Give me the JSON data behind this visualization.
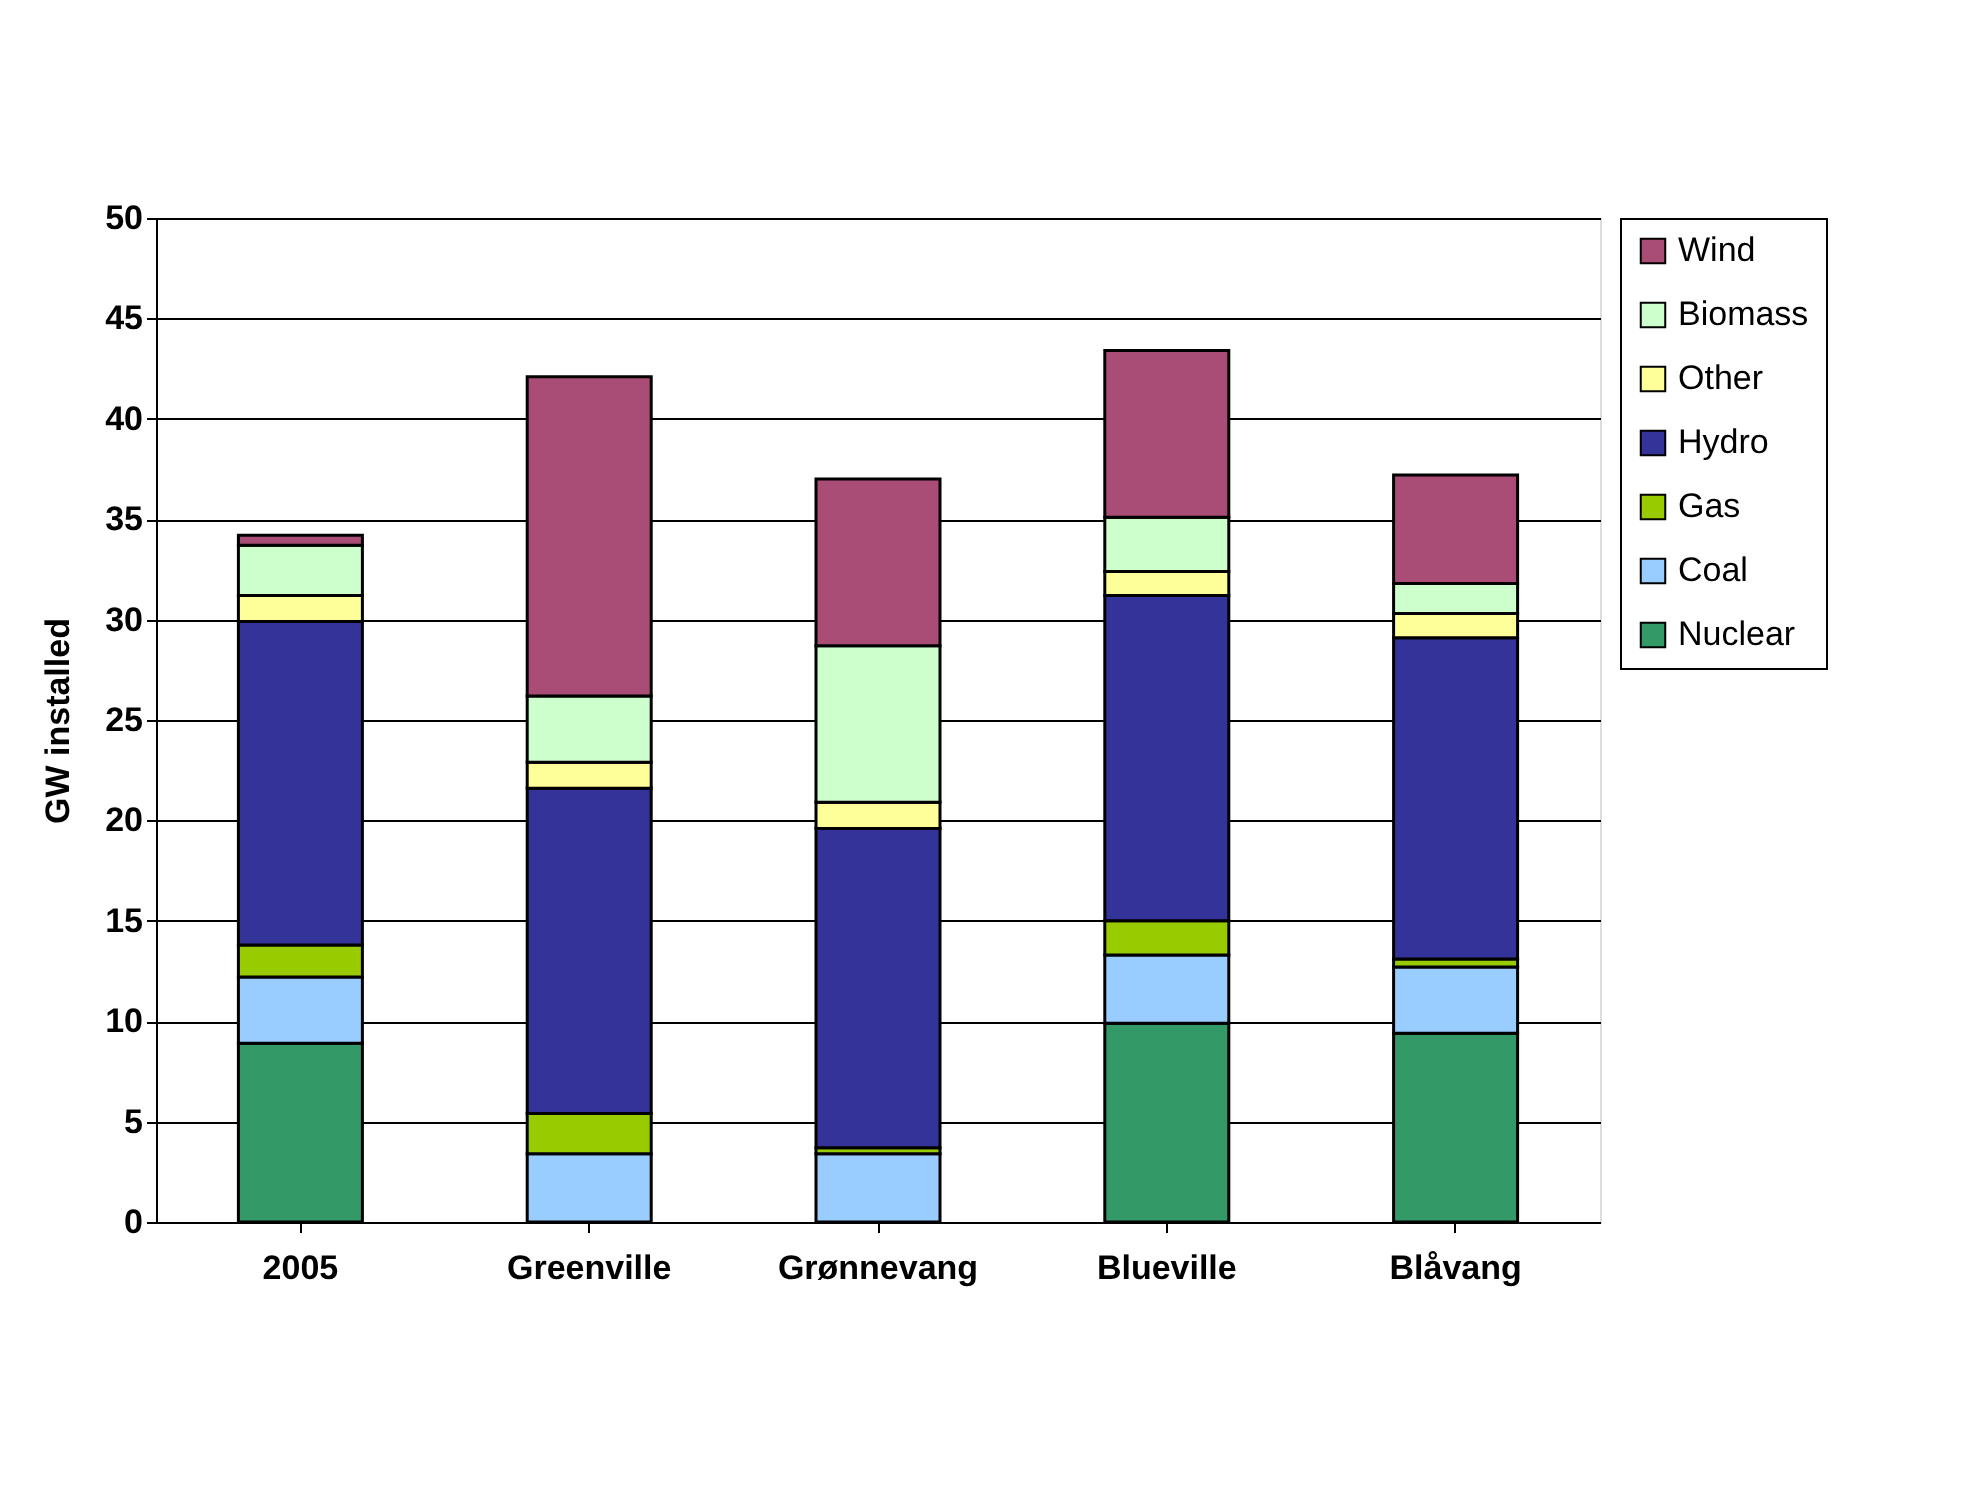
{
  "chart_data": {
    "type": "bar",
    "stacked": true,
    "ylabel": "GW installed",
    "categories": [
      "2005",
      "Greenville",
      "Grønnevang",
      "Blueville",
      "Blåvang"
    ],
    "series": [
      {
        "name": "Nuclear",
        "color": "#339966",
        "values": [
          8.9,
          0,
          0,
          9.9,
          9.4
        ]
      },
      {
        "name": "Coal",
        "color": "#99ccff",
        "values": [
          3.3,
          3.4,
          3.4,
          3.4,
          3.3
        ]
      },
      {
        "name": "Gas",
        "color": "#99cc00",
        "values": [
          1.6,
          2.0,
          0.3,
          1.7,
          0.4
        ]
      },
      {
        "name": "Hydro",
        "color": "#333399",
        "values": [
          16.1,
          16.2,
          15.9,
          16.2,
          16.0
        ]
      },
      {
        "name": "Other",
        "color": "#ffff99",
        "values": [
          1.3,
          1.3,
          1.3,
          1.2,
          1.2
        ]
      },
      {
        "name": "Biomass",
        "color": "#ccffcc",
        "values": [
          2.5,
          3.3,
          7.8,
          2.7,
          1.5
        ]
      },
      {
        "name": "Wind",
        "color": "#a94d76",
        "values": [
          0.5,
          15.9,
          8.3,
          8.3,
          5.4
        ]
      }
    ],
    "ylim": [
      0,
      50
    ],
    "yticks": [
      0,
      5,
      10,
      15,
      20,
      25,
      30,
      35,
      40,
      45,
      50
    ],
    "grid": "y",
    "legend": "right"
  }
}
